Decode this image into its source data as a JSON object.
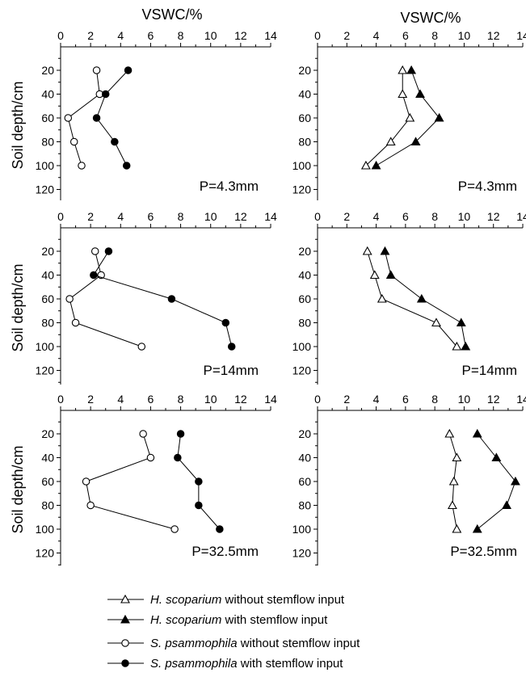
{
  "chart_data": {
    "type": "line",
    "x_title": "VSWC/%",
    "y_title": "Soil depth/cm",
    "x_ticks": [
      0,
      2,
      4,
      6,
      8,
      10,
      12,
      14
    ],
    "y_ticks": [
      20,
      40,
      60,
      80,
      100,
      120
    ],
    "xlim": [
      0,
      14
    ],
    "ylim": [
      10,
      130
    ],
    "y_inverted": true,
    "grid": false,
    "legend_position": "bottom",
    "depths": [
      20,
      40,
      60,
      80,
      100
    ],
    "series_styles": {
      "hs_without": {
        "marker": "triangle",
        "filled": false
      },
      "hs_with": {
        "marker": "triangle",
        "filled": true
      },
      "sp_without": {
        "marker": "circle",
        "filled": false
      },
      "sp_with": {
        "marker": "circle",
        "filled": true
      }
    },
    "legend": [
      {
        "key": "hs_without",
        "species": "H. scoparium",
        "rest": " without stemflow input"
      },
      {
        "key": "hs_with",
        "species": "H. scoparium",
        "rest": " with stemflow input"
      },
      {
        "key": "sp_without",
        "species": "S. psammophila",
        "rest": " without stemflow input"
      },
      {
        "key": "sp_with",
        "species": "S. psammophila",
        "rest": " with stemflow input"
      }
    ],
    "panels": [
      {
        "row": 0,
        "col": 0,
        "label": "P=4.3mm",
        "series": [
          {
            "key": "sp_without",
            "values": [
              2.4,
              2.6,
              0.5,
              0.9,
              1.4
            ]
          },
          {
            "key": "sp_with",
            "values": [
              4.5,
              3.0,
              2.4,
              3.6,
              4.4
            ]
          }
        ]
      },
      {
        "row": 0,
        "col": 1,
        "label": "P=4.3mm",
        "series": [
          {
            "key": "hs_without",
            "values": [
              5.8,
              5.8,
              6.3,
              5.0,
              3.3
            ]
          },
          {
            "key": "hs_with",
            "values": [
              6.4,
              7.0,
              8.3,
              6.7,
              4.0
            ]
          }
        ]
      },
      {
        "row": 1,
        "col": 0,
        "label": "P=14mm",
        "series": [
          {
            "key": "sp_without",
            "values": [
              2.3,
              2.7,
              0.6,
              1.0,
              5.4
            ]
          },
          {
            "key": "sp_with",
            "values": [
              3.2,
              2.2,
              7.4,
              11.0,
              11.4
            ]
          }
        ]
      },
      {
        "row": 1,
        "col": 1,
        "label": "P=14mm",
        "series": [
          {
            "key": "hs_without",
            "values": [
              3.4,
              3.9,
              4.4,
              8.1,
              9.5
            ]
          },
          {
            "key": "hs_with",
            "values": [
              4.6,
              5.0,
              7.1,
              9.8,
              10.1
            ]
          }
        ]
      },
      {
        "row": 2,
        "col": 0,
        "label": "P=32.5mm",
        "series": [
          {
            "key": "sp_without",
            "values": [
              5.5,
              6.0,
              1.7,
              2.0,
              7.6
            ]
          },
          {
            "key": "sp_with",
            "values": [
              8.0,
              7.8,
              9.2,
              9.2,
              10.6
            ]
          }
        ]
      },
      {
        "row": 2,
        "col": 1,
        "label": "P=32.5mm",
        "series": [
          {
            "key": "hs_without",
            "values": [
              9.0,
              9.5,
              9.3,
              9.2,
              9.5
            ]
          },
          {
            "key": "hs_with",
            "values": [
              10.9,
              12.2,
              13.5,
              12.9,
              10.9
            ]
          }
        ]
      }
    ]
  }
}
